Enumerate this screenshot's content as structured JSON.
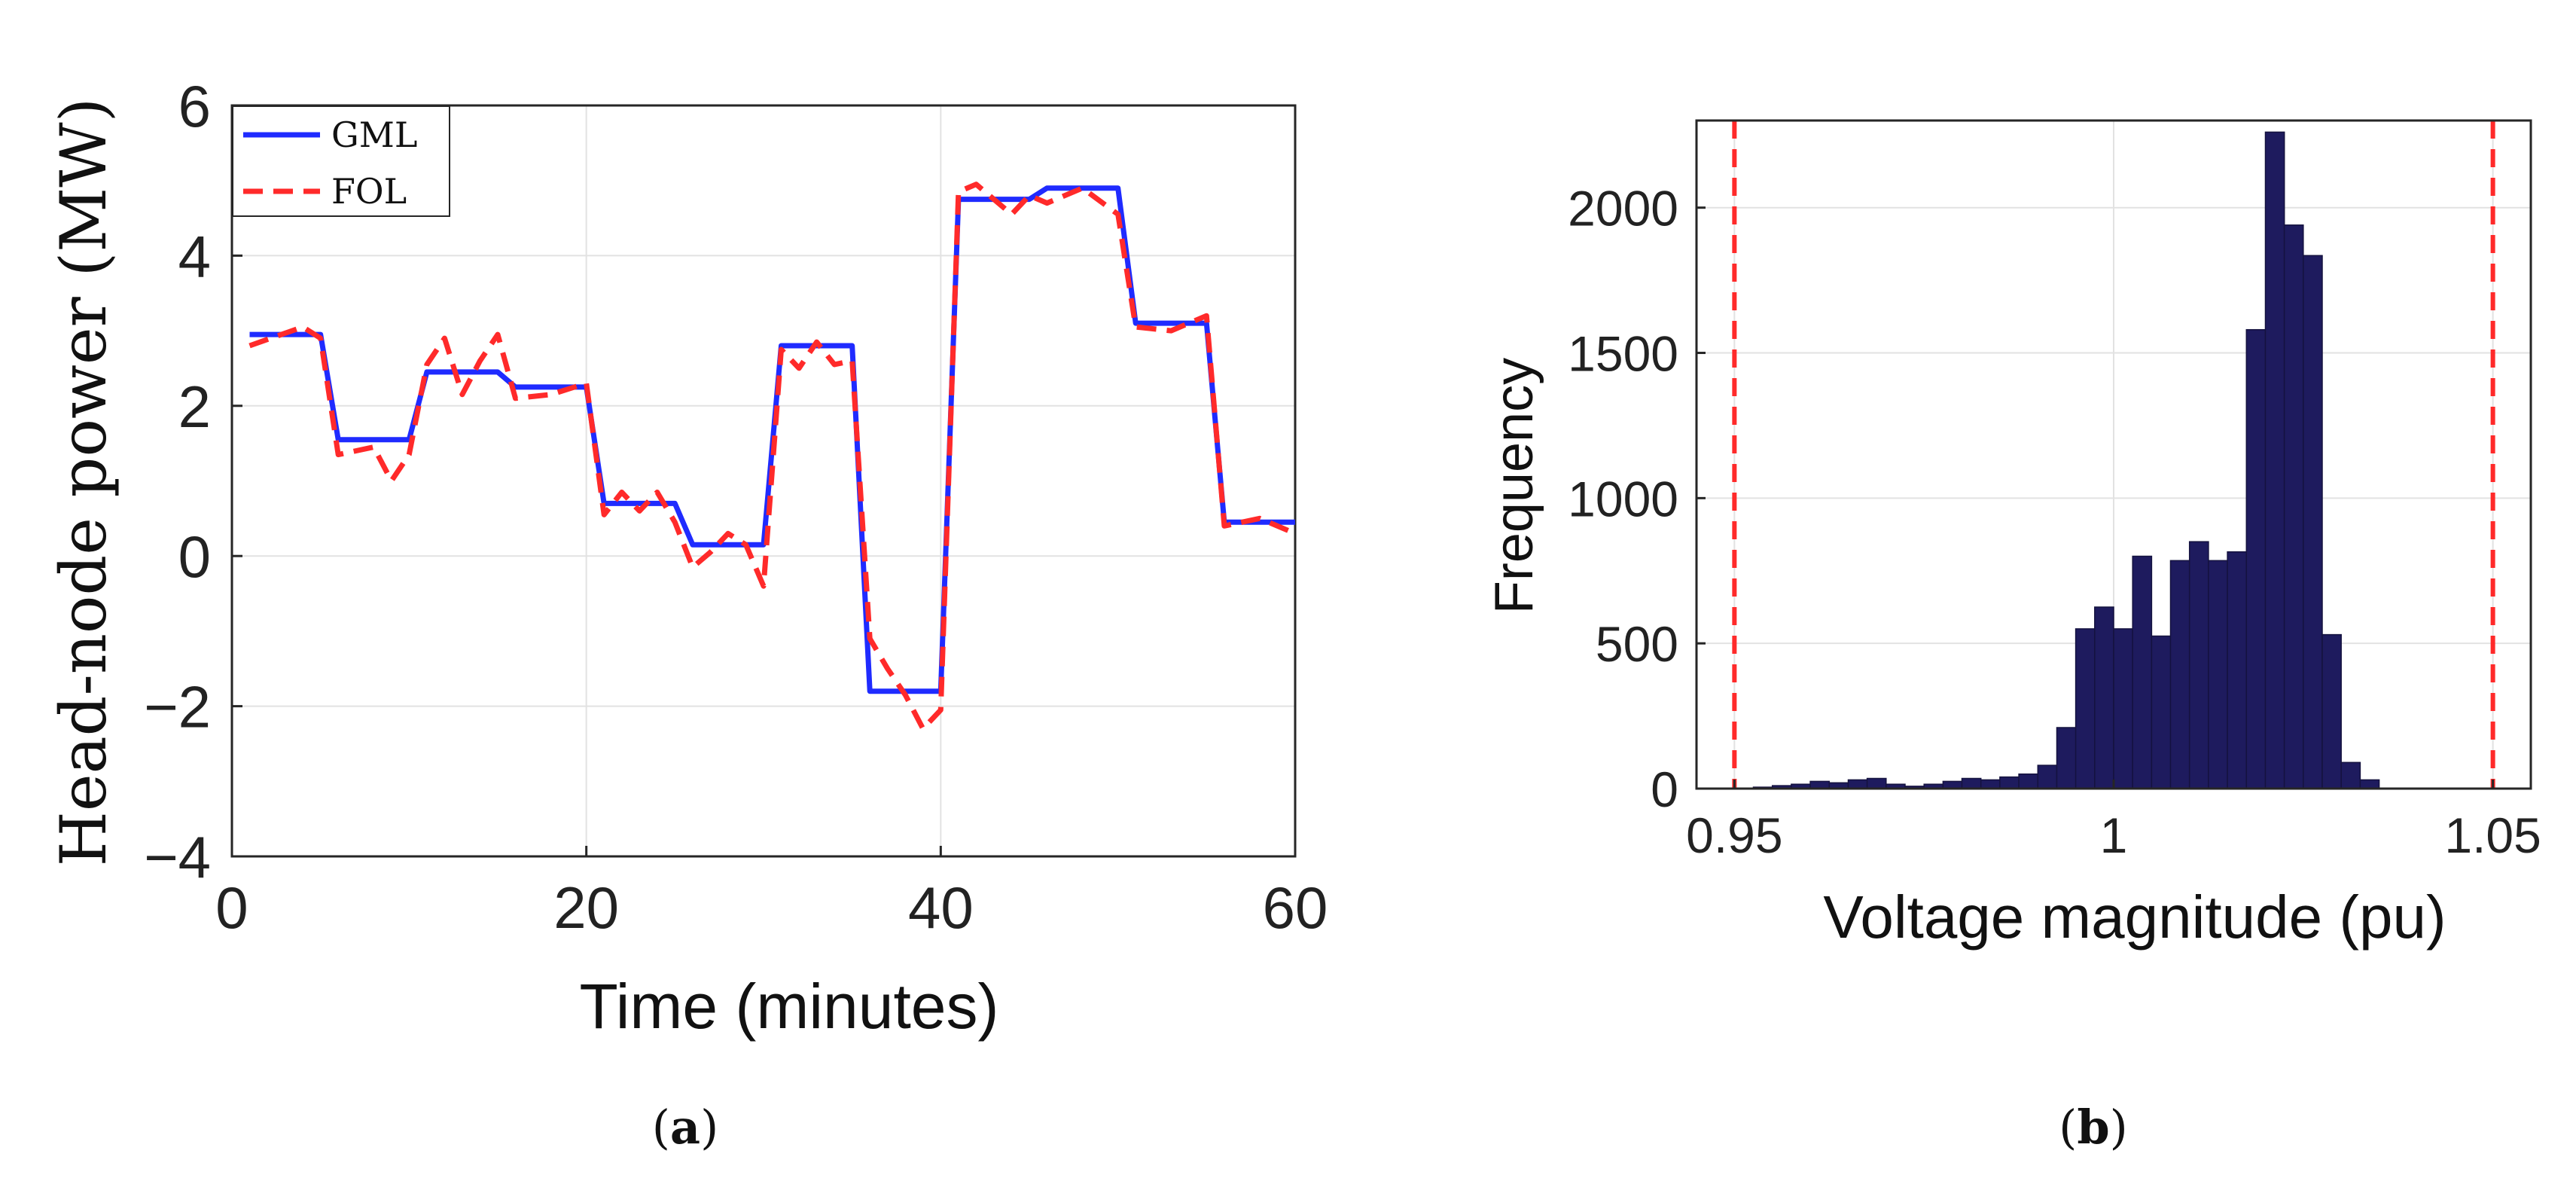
{
  "chart_data": [
    {
      "type": "line",
      "x": [
        1,
        4,
        5,
        6,
        8,
        9,
        10,
        11,
        12,
        13,
        14,
        15,
        16,
        18,
        20,
        21,
        22,
        23,
        24,
        25,
        26,
        27,
        28,
        29,
        30,
        31,
        32,
        33,
        34,
        35,
        36,
        37,
        38,
        39,
        40,
        41,
        42,
        44,
        45,
        46,
        48,
        50,
        51,
        53,
        55,
        56,
        58,
        60
      ],
      "series": [
        {
          "name": "GML",
          "color": "#1f2bff",
          "style": "solid",
          "values": [
            2.95,
            2.95,
            2.95,
            1.55,
            1.55,
            1.55,
            1.55,
            2.45,
            2.45,
            2.45,
            2.45,
            2.45,
            2.25,
            2.25,
            2.25,
            0.7,
            0.7,
            0.7,
            0.7,
            0.7,
            0.15,
            0.15,
            0.15,
            0.15,
            0.15,
            2.8,
            2.8,
            2.8,
            2.8,
            2.8,
            -1.8,
            -1.8,
            -1.8,
            -1.8,
            -1.8,
            4.75,
            4.75,
            4.75,
            4.75,
            4.9,
            4.9,
            4.9,
            3.1,
            3.1,
            3.1,
            0.45,
            0.45,
            0.45
          ]
        },
        {
          "name": "FOL",
          "color": "#ff2a2a",
          "style": "dashed",
          "values": [
            2.8,
            3.05,
            2.9,
            1.35,
            1.45,
            1.0,
            1.35,
            2.55,
            2.9,
            2.15,
            2.6,
            2.95,
            2.1,
            2.15,
            2.3,
            0.55,
            0.85,
            0.6,
            0.85,
            0.45,
            -0.15,
            0.05,
            0.3,
            0.15,
            -0.4,
            2.75,
            2.5,
            2.85,
            2.55,
            2.6,
            -1.1,
            -1.5,
            -1.85,
            -2.3,
            -2.05,
            4.85,
            4.95,
            4.55,
            4.8,
            4.7,
            4.9,
            4.55,
            3.05,
            3.0,
            3.2,
            0.4,
            0.5,
            0.3
          ]
        }
      ],
      "xlabel": "Time (minutes)",
      "ylabel": "Head-node power (MW)",
      "xlim": [
        0,
        60
      ],
      "ylim": [
        -4,
        6
      ],
      "xticks": [
        "0",
        "20",
        "40",
        "60"
      ],
      "yticks": [
        "6",
        "4",
        "2",
        "0",
        "−2",
        "−4"
      ],
      "grid": true,
      "legend_position": "top-left",
      "caption": "(a)"
    },
    {
      "type": "bar",
      "subtype": "histogram",
      "bin_width": 0.0025,
      "bin_starts": [
        0.9525,
        0.955,
        0.9575,
        0.96,
        0.9625,
        0.965,
        0.9675,
        0.97,
        0.9725,
        0.975,
        0.9775,
        0.98,
        0.9825,
        0.985,
        0.9875,
        0.99,
        0.9925,
        0.995,
        0.9975,
        1.0,
        1.0025,
        1.005,
        1.0075,
        1.01,
        1.0125,
        1.015,
        1.0175,
        1.02,
        1.0225,
        1.025,
        1.0275,
        1.03,
        1.0325,
        1.035,
        1.0375,
        1.04,
        1.0425
      ],
      "values": [
        5,
        10,
        15,
        25,
        20,
        30,
        35,
        15,
        8,
        15,
        25,
        35,
        30,
        40,
        50,
        80,
        210,
        550,
        625,
        550,
        800,
        525,
        785,
        850,
        785,
        815,
        1580,
        2260,
        1940,
        1835,
        530,
        90,
        30,
        0,
        0,
        0,
        0
      ],
      "bar_color": "#1e1b5e",
      "reference_lines": [
        {
          "x": 0.95,
          "color": "#ff2a2a",
          "style": "dashed"
        },
        {
          "x": 1.05,
          "color": "#ff2a2a",
          "style": "dashed"
        }
      ],
      "xlabel": "Voltage magnitude (pu)",
      "ylabel": "Frequency",
      "xlim": [
        0.945,
        1.055
      ],
      "ylim": [
        0,
        2300
      ],
      "xticks": [
        "0.95",
        "1",
        "1.05"
      ],
      "yticks": [
        "2000",
        "1500",
        "1000",
        "500",
        "0"
      ],
      "grid": true,
      "caption": "(b)"
    }
  ]
}
